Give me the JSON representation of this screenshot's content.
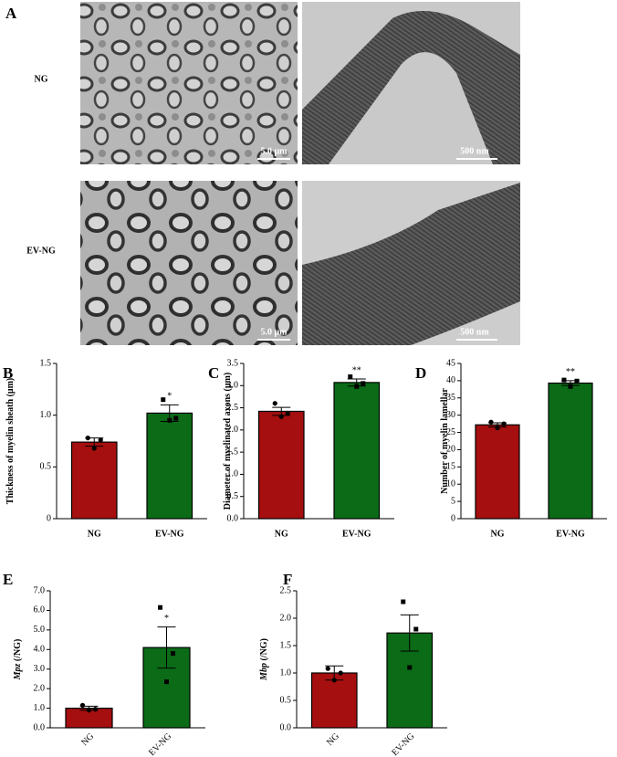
{
  "panel_a": {
    "label": "A",
    "rows": [
      "NG",
      "EV-NG"
    ],
    "scale_bars": [
      "5.0 μm",
      "500 nm"
    ]
  },
  "chart_data": [
    {
      "type": "bar",
      "label": "B",
      "ylabel": "Thickness of myelin sheath (μm)",
      "categories": [
        "NG",
        "EV-NG"
      ],
      "values": [
        0.74,
        1.02
      ],
      "errors": [
        0.04,
        0.08
      ],
      "points": [
        [
          0.78,
          0.76,
          0.68
        ],
        [
          1.15,
          0.97,
          0.95
        ]
      ],
      "significance": "*",
      "colors": [
        "#a50f0f",
        "#0b6b17"
      ],
      "ylim": [
        0,
        1.5
      ],
      "yticks": [
        0,
        0.5,
        {
          "value": 1,
          "label": "1.0"
        },
        1.5
      ]
    },
    {
      "type": "bar",
      "label": "C",
      "ylabel": "Diameter of myelinated axons (μm)",
      "categories": [
        "NG",
        "EV-NG"
      ],
      "values": [
        2.42,
        3.07
      ],
      "errors": [
        0.09,
        0.08
      ],
      "points": [
        [
          2.6,
          2.38,
          2.3
        ],
        [
          3.2,
          3.05,
          2.98
        ]
      ],
      "significance": "**",
      "colors": [
        "#a50f0f",
        "#0b6b17"
      ],
      "ylim": [
        0,
        3.5
      ],
      "yticks": [
        {
          "value": 0,
          "label": "0.0"
        },
        0.5,
        {
          "value": 1,
          "label": "1.0"
        },
        1.5,
        {
          "value": 2,
          "label": "2.0"
        },
        2.5,
        {
          "value": 3,
          "label": "3.0"
        },
        3.5
      ]
    },
    {
      "type": "bar",
      "label": "D",
      "ylabel": "Number of myelin lamellar",
      "categories": [
        "NG",
        "EV-NG"
      ],
      "values": [
        27.2,
        39.3
      ],
      "errors": [
        0.6,
        0.7
      ],
      "points": [
        [
          28,
          27.5,
          26.3
        ],
        [
          40.2,
          39.9,
          38.3
        ]
      ],
      "significance": "**",
      "colors": [
        "#a50f0f",
        "#0b6b17"
      ],
      "ylim": [
        0,
        45
      ],
      "yticks": [
        0,
        5,
        10,
        15,
        20,
        25,
        30,
        35,
        40,
        45
      ]
    },
    {
      "type": "bar",
      "label": "E",
      "y_label_gene": "Mpz",
      "ylabel": " (/NG)",
      "categories": [
        "NG",
        "EV-NG"
      ],
      "values": [
        1.0,
        4.1
      ],
      "errors": [
        0.1,
        1.05
      ],
      "points": [
        [
          1.15,
          0.95,
          0.9
        ],
        [
          6.15,
          3.8,
          2.35
        ]
      ],
      "significance": "*",
      "colors": [
        "#a50f0f",
        "#0b6b17"
      ],
      "ylim": [
        0,
        7
      ],
      "yticks": [
        {
          "value": 0,
          "label": "0.0"
        },
        {
          "value": 1,
          "label": "1.0"
        },
        {
          "value": 2,
          "label": "2.0"
        },
        {
          "value": 3,
          "label": "3.0"
        },
        {
          "value": 4,
          "label": "4.0"
        },
        {
          "value": 5,
          "label": "5.0"
        },
        {
          "value": 6,
          "label": "6.0"
        },
        {
          "value": 7,
          "label": "7.0"
        }
      ]
    },
    {
      "type": "bar",
      "label": "F",
      "y_label_gene": "Mbp",
      "ylabel": " (/NG)",
      "categories": [
        "NG",
        "EV-NG"
      ],
      "values": [
        1.0,
        1.73
      ],
      "errors": [
        0.13,
        0.33
      ],
      "points": [
        [
          1.08,
          1.0,
          0.87
        ],
        [
          2.3,
          1.8,
          1.1
        ]
      ],
      "colors": [
        "#a50f0f",
        "#0b6b17"
      ],
      "ylim": [
        0,
        2.5
      ],
      "yticks": [
        {
          "value": 0,
          "label": "0.0"
        },
        0.5,
        {
          "value": 1,
          "label": "1.0"
        },
        1.5,
        {
          "value": 2,
          "label": "2.0"
        },
        2.5
      ]
    }
  ]
}
